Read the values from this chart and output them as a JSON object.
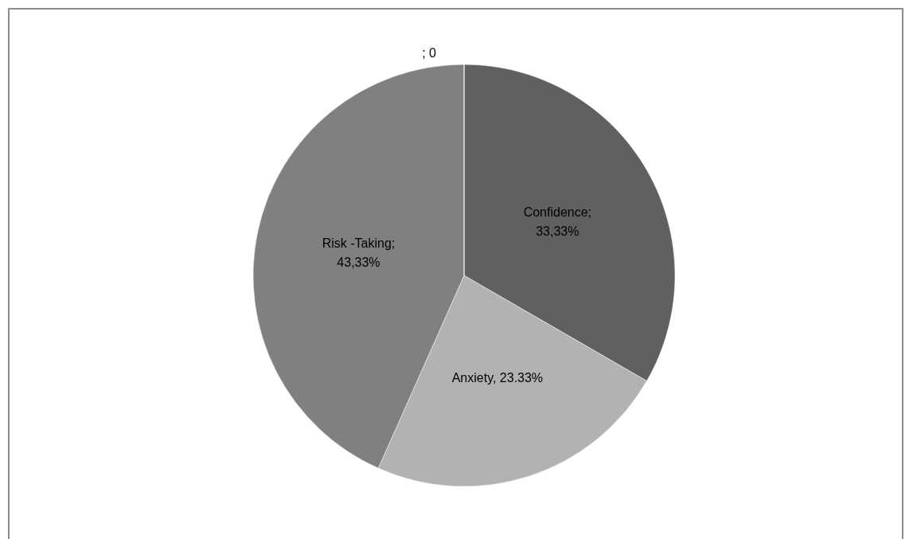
{
  "chart_data": {
    "type": "pie",
    "categories": [
      "Confidence",
      "Anxiety",
      "Risk -Taking",
      null
    ],
    "values": [
      33.33,
      23.33,
      43.33,
      0
    ],
    "colors": [
      "#606060",
      "#b2b2b2",
      "#808080",
      "#4d4d4d"
    ],
    "value_labels": [
      "; 33,33%",
      ", 23.33%",
      "; 43,33%",
      "; 0"
    ],
    "legend": false
  }
}
